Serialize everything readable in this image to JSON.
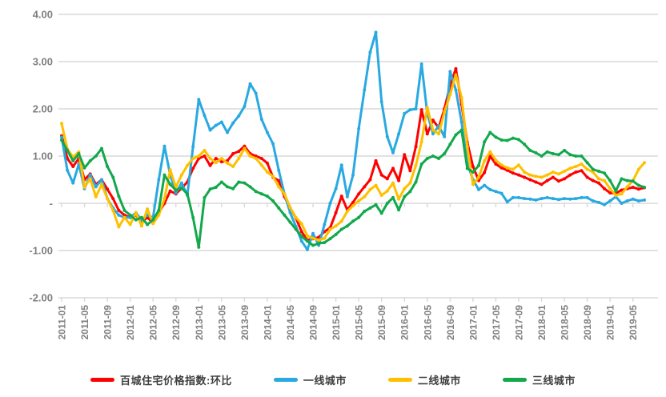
{
  "page": {
    "background": "#ffffff",
    "title": ""
  },
  "chart_data": {
    "type": "line",
    "title": "",
    "xlabel": "",
    "ylabel": "",
    "grid": true,
    "legend_position": "bottom",
    "colors": {
      "grid": "#d8d8d8",
      "axis_text": "#7f7f7f",
      "legend_text": "#3f3f3f",
      "background": "#ffffff"
    },
    "y_axis": {
      "range": [
        -2,
        4
      ],
      "ticks": [
        {
          "value": 4,
          "label": "4.00"
        },
        {
          "value": 3,
          "label": "3.00"
        },
        {
          "value": 2,
          "label": "2.00"
        },
        {
          "value": 1,
          "label": "1.00"
        },
        {
          "value": 0,
          "label": "-"
        },
        {
          "value": -1,
          "label": "-1.00"
        },
        {
          "value": -2,
          "label": "-2.00"
        }
      ]
    },
    "x_axis": {
      "label_rotation_deg": -90,
      "tick_every_n_months": 4,
      "tick_labels": [
        "2011-01",
        "2011-05",
        "2011-09",
        "2012-01",
        "2012-05",
        "2012-09",
        "2013-01",
        "2013-05",
        "2013-09",
        "2014-01",
        "2014-05",
        "2014-09",
        "2015-01",
        "2015-05",
        "2015-09",
        "2016-01",
        "2016-05",
        "2016-09",
        "2017-01",
        "2017-05",
        "2017-09",
        "2018-01",
        "2018-05",
        "2018-09",
        "2019-01",
        "2019-05"
      ],
      "months": [
        "2011-01",
        "2011-02",
        "2011-03",
        "2011-04",
        "2011-05",
        "2011-06",
        "2011-07",
        "2011-08",
        "2011-09",
        "2011-10",
        "2011-11",
        "2011-12",
        "2012-01",
        "2012-02",
        "2012-03",
        "2012-04",
        "2012-05",
        "2012-06",
        "2012-07",
        "2012-08",
        "2012-09",
        "2012-10",
        "2012-11",
        "2012-12",
        "2013-01",
        "2013-02",
        "2013-03",
        "2013-04",
        "2013-05",
        "2013-06",
        "2013-07",
        "2013-08",
        "2013-09",
        "2013-10",
        "2013-11",
        "2013-12",
        "2014-01",
        "2014-02",
        "2014-03",
        "2014-04",
        "2014-05",
        "2014-06",
        "2014-07",
        "2014-08",
        "2014-09",
        "2014-10",
        "2014-11",
        "2014-12",
        "2015-01",
        "2015-02",
        "2015-03",
        "2015-04",
        "2015-05",
        "2015-06",
        "2015-07",
        "2015-08",
        "2015-09",
        "2015-10",
        "2015-11",
        "2015-12",
        "2016-01",
        "2016-02",
        "2016-03",
        "2016-04",
        "2016-05",
        "2016-06",
        "2016-07",
        "2016-08",
        "2016-09",
        "2016-10",
        "2016-11",
        "2016-12",
        "2017-01",
        "2017-02",
        "2017-03",
        "2017-04",
        "2017-05",
        "2017-06",
        "2017-07",
        "2017-08",
        "2017-09",
        "2017-10",
        "2017-11",
        "2017-12",
        "2018-01",
        "2018-02",
        "2018-03",
        "2018-04",
        "2018-05",
        "2018-06",
        "2018-07",
        "2018-08",
        "2018-09",
        "2018-10",
        "2018-11",
        "2018-12",
        "2019-01",
        "2019-02",
        "2019-03",
        "2019-04",
        "2019-05",
        "2019-06",
        "2019-07"
      ]
    },
    "series": [
      {
        "name": "百城住宅价格指数:环比",
        "color": "#ff0000",
        "values": [
          1.43,
          0.95,
          0.78,
          0.95,
          0.5,
          0.62,
          0.4,
          0.5,
          0.3,
          0.1,
          -0.15,
          -0.25,
          -0.3,
          -0.25,
          -0.4,
          -0.3,
          -0.41,
          -0.2,
          0.0,
          0.26,
          0.2,
          0.32,
          0.45,
          0.74,
          0.95,
          1.0,
          0.8,
          0.95,
          0.88,
          0.9,
          1.05,
          1.1,
          1.21,
          1.05,
          1.0,
          0.95,
          0.85,
          0.55,
          0.48,
          0.14,
          -0.1,
          -0.31,
          -0.6,
          -0.78,
          -0.75,
          -0.72,
          -0.6,
          -0.52,
          -0.2,
          0.15,
          -0.14,
          0.02,
          0.2,
          0.35,
          0.5,
          0.9,
          0.6,
          0.52,
          0.74,
          0.48,
          1.03,
          0.69,
          1.2,
          1.98,
          1.47,
          1.76,
          1.6,
          2.0,
          2.5,
          2.85,
          2.1,
          1.29,
          0.78,
          0.48,
          0.65,
          1.0,
          0.83,
          0.75,
          0.7,
          0.64,
          0.6,
          0.55,
          0.5,
          0.45,
          0.4,
          0.48,
          0.55,
          0.47,
          0.52,
          0.6,
          0.66,
          0.69,
          0.55,
          0.48,
          0.43,
          0.31,
          0.22,
          0.21,
          0.28,
          0.31,
          0.34,
          0.3,
          0.33
        ]
      },
      {
        "name": "一线城市",
        "color": "#29a9e1",
        "values": [
          1.4,
          0.7,
          0.43,
          0.83,
          0.31,
          0.6,
          0.35,
          0.5,
          0.1,
          -0.1,
          -0.25,
          -0.3,
          -0.3,
          -0.2,
          -0.35,
          -0.25,
          -0.3,
          0.5,
          1.21,
          0.6,
          0.22,
          0.43,
          0.17,
          1.2,
          2.2,
          1.86,
          1.55,
          1.65,
          1.72,
          1.5,
          1.7,
          1.85,
          2.05,
          2.53,
          2.33,
          1.78,
          1.5,
          1.26,
          0.7,
          0.2,
          -0.2,
          -0.49,
          -0.8,
          -0.98,
          -0.64,
          -0.89,
          -0.45,
          0.0,
          0.31,
          0.81,
          0.14,
          0.6,
          1.58,
          2.4,
          3.2,
          3.62,
          2.15,
          1.41,
          1.07,
          1.47,
          1.9,
          1.98,
          2.0,
          2.95,
          1.9,
          1.47,
          1.64,
          1.41,
          2.79,
          2.4,
          1.72,
          0.85,
          0.5,
          0.29,
          0.38,
          0.29,
          0.25,
          0.21,
          0.03,
          0.12,
          0.12,
          0.1,
          0.09,
          0.07,
          0.1,
          0.12,
          0.1,
          0.08,
          0.1,
          0.09,
          0.1,
          0.12,
          0.12,
          0.05,
          0.02,
          -0.03,
          0.05,
          0.14,
          0.0,
          0.05,
          0.09,
          0.05,
          0.07
        ]
      },
      {
        "name": "二线城市",
        "color": "#ffc000",
        "values": [
          1.69,
          1.15,
          0.98,
          1.09,
          0.34,
          0.52,
          0.14,
          0.4,
          0.1,
          -0.15,
          -0.5,
          -0.3,
          -0.45,
          -0.2,
          -0.48,
          -0.12,
          -0.43,
          -0.25,
          0.1,
          0.71,
          0.34,
          0.6,
          0.8,
          0.95,
          1.0,
          1.12,
          0.95,
          0.86,
          0.95,
          0.85,
          0.78,
          0.95,
          1.16,
          1.0,
          0.95,
          0.81,
          0.66,
          0.57,
          0.35,
          0.2,
          -0.09,
          -0.3,
          -0.43,
          -0.69,
          -0.74,
          -0.78,
          -0.74,
          -0.55,
          -0.48,
          -0.38,
          -0.17,
          -0.05,
          0.05,
          0.14,
          0.29,
          0.38,
          0.17,
          0.26,
          0.43,
          0.09,
          0.31,
          0.43,
          0.8,
          1.3,
          2.03,
          1.55,
          1.47,
          1.93,
          2.3,
          2.72,
          2.24,
          1.2,
          0.4,
          0.55,
          0.9,
          1.09,
          0.91,
          0.81,
          0.75,
          0.72,
          0.81,
          0.66,
          0.6,
          0.57,
          0.55,
          0.6,
          0.66,
          0.62,
          0.68,
          0.74,
          0.78,
          0.83,
          0.72,
          0.66,
          0.52,
          0.48,
          0.31,
          0.17,
          0.2,
          0.35,
          0.48,
          0.72,
          0.86
        ]
      },
      {
        "name": "三线城市",
        "color": "#12a84b",
        "values": [
          1.34,
          1.12,
          0.9,
          1.05,
          0.75,
          0.9,
          1.0,
          1.16,
          0.78,
          0.55,
          0.15,
          -0.15,
          -0.25,
          -0.35,
          -0.3,
          -0.45,
          -0.35,
          -0.15,
          0.6,
          0.4,
          0.28,
          0.32,
          0.2,
          -0.3,
          -0.93,
          0.12,
          0.3,
          0.34,
          0.45,
          0.35,
          0.31,
          0.45,
          0.43,
          0.35,
          0.25,
          0.2,
          0.15,
          0.05,
          -0.1,
          -0.25,
          -0.4,
          -0.55,
          -0.7,
          -0.8,
          -0.89,
          -0.85,
          -0.83,
          -0.75,
          -0.66,
          -0.55,
          -0.48,
          -0.38,
          -0.3,
          -0.17,
          -0.1,
          -0.03,
          -0.21,
          0.0,
          0.12,
          -0.14,
          0.14,
          0.25,
          0.45,
          0.83,
          0.95,
          1.0,
          0.95,
          1.05,
          1.25,
          1.45,
          1.55,
          0.74,
          0.66,
          0.8,
          1.3,
          1.5,
          1.4,
          1.34,
          1.33,
          1.38,
          1.35,
          1.25,
          1.12,
          1.07,
          1.0,
          1.09,
          1.05,
          1.03,
          1.12,
          1.03,
          1.0,
          1.0,
          0.86,
          0.72,
          0.68,
          0.64,
          0.48,
          0.26,
          0.52,
          0.48,
          0.47,
          0.38,
          0.34
        ]
      }
    ]
  }
}
